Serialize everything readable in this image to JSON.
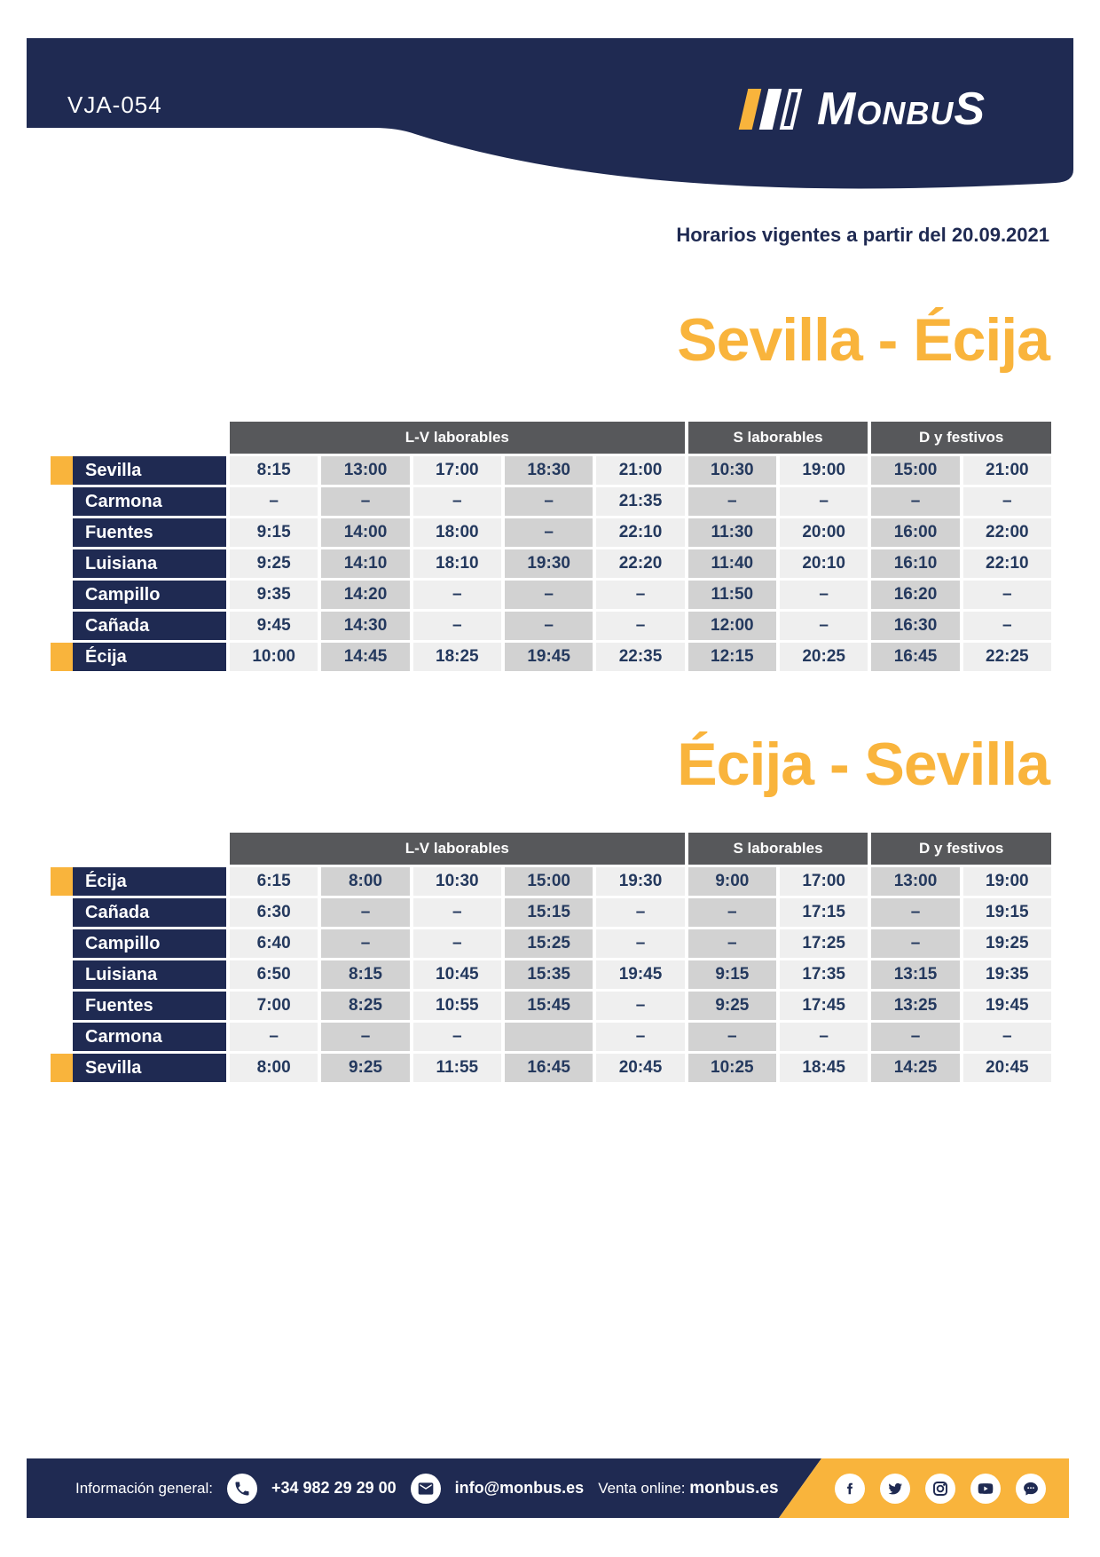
{
  "page": {
    "route_code": "VJA-054",
    "brand_parts": [
      "M",
      "ONBU",
      "S"
    ],
    "validity_note": "Horarios vigentes a partir del 20.09.2021"
  },
  "colors": {
    "navy": "#1F2A52",
    "yellow": "#F9B43C",
    "band_gray": "#57585B",
    "cell_light": "#EFEFEF",
    "cell_dark": "#D2D2D2",
    "time_text": "#24395E"
  },
  "column_groups": [
    {
      "label": "L-V laborables",
      "span": 5
    },
    {
      "label": "S laborables",
      "span": 2
    },
    {
      "label": "D y festivos",
      "span": 2
    }
  ],
  "tables": [
    {
      "title": "Sevilla - Écija",
      "rows": [
        {
          "stop": "Sevilla",
          "marker": true,
          "times": [
            "8:15",
            "13:00",
            "17:00",
            "18:30",
            "21:00",
            "10:30",
            "19:00",
            "15:00",
            "21:00"
          ]
        },
        {
          "stop": "Carmona",
          "marker": false,
          "times": [
            "–",
            "–",
            "–",
            "–",
            "21:35",
            "–",
            "–",
            "–",
            "–"
          ]
        },
        {
          "stop": "Fuentes",
          "marker": false,
          "times": [
            "9:15",
            "14:00",
            "18:00",
            "–",
            "22:10",
            "11:30",
            "20:00",
            "16:00",
            "22:00"
          ]
        },
        {
          "stop": "Luisiana",
          "marker": false,
          "times": [
            "9:25",
            "14:10",
            "18:10",
            "19:30",
            "22:20",
            "11:40",
            "20:10",
            "16:10",
            "22:10"
          ]
        },
        {
          "stop": "Campillo",
          "marker": false,
          "times": [
            "9:35",
            "14:20",
            "–",
            "–",
            "–",
            "11:50",
            "–",
            "16:20",
            "–"
          ]
        },
        {
          "stop": "Cañada",
          "marker": false,
          "times": [
            "9:45",
            "14:30",
            "–",
            "–",
            "–",
            "12:00",
            "–",
            "16:30",
            "–"
          ]
        },
        {
          "stop": "Écija",
          "marker": true,
          "times": [
            "10:00",
            "14:45",
            "18:25",
            "19:45",
            "22:35",
            "12:15",
            "20:25",
            "16:45",
            "22:25"
          ]
        }
      ]
    },
    {
      "title": "Écija - Sevilla",
      "rows": [
        {
          "stop": "Écija",
          "marker": true,
          "times": [
            "6:15",
            "8:00",
            "10:30",
            "15:00",
            "19:30",
            "9:00",
            "17:00",
            "13:00",
            "19:00"
          ]
        },
        {
          "stop": "Cañada",
          "marker": false,
          "times": [
            "6:30",
            "–",
            "–",
            "15:15",
            "–",
            "–",
            "17:15",
            "–",
            "19:15"
          ]
        },
        {
          "stop": "Campillo",
          "marker": false,
          "times": [
            "6:40",
            "–",
            "–",
            "15:25",
            "–",
            "–",
            "17:25",
            "–",
            "19:25"
          ]
        },
        {
          "stop": "Luisiana",
          "marker": false,
          "times": [
            "6:50",
            "8:15",
            "10:45",
            "15:35",
            "19:45",
            "9:15",
            "17:35",
            "13:15",
            "19:35"
          ]
        },
        {
          "stop": "Fuentes",
          "marker": false,
          "times": [
            "7:00",
            "8:25",
            "10:55",
            "15:45",
            "–",
            "9:25",
            "17:45",
            "13:25",
            "19:45"
          ]
        },
        {
          "stop": "Carmona",
          "marker": false,
          "times": [
            "–",
            "–",
            "–",
            "",
            "–",
            "–",
            "–",
            "–",
            "–"
          ]
        },
        {
          "stop": "Sevilla",
          "marker": true,
          "times": [
            "8:00",
            "9:25",
            "11:55",
            "16:45",
            "20:45",
            "10:25",
            "18:45",
            "14:25",
            "20:45"
          ]
        }
      ]
    }
  ],
  "footer": {
    "info_label": "Información general:",
    "phone": "+34 982 29 29 00",
    "email": "info@monbus.es",
    "online_label": "Venta online:",
    "online_site": "monbus.es",
    "social_icons": [
      "facebook",
      "twitter",
      "instagram",
      "youtube",
      "club"
    ]
  }
}
